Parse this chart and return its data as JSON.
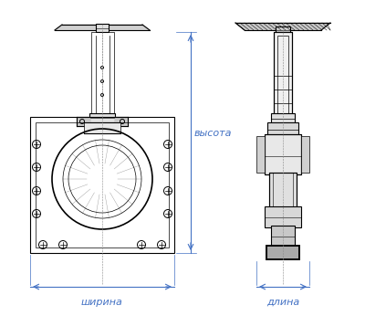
{
  "bg_color": "#ffffff",
  "line_color": "#000000",
  "dim_color": "#4472c4",
  "label_color": "#4472c4",
  "label_fontsize": 8,
  "fig_width": 4.0,
  "fig_height": 3.46,
  "labels": {
    "width": "ширина",
    "length": "длина",
    "height": "высота"
  }
}
